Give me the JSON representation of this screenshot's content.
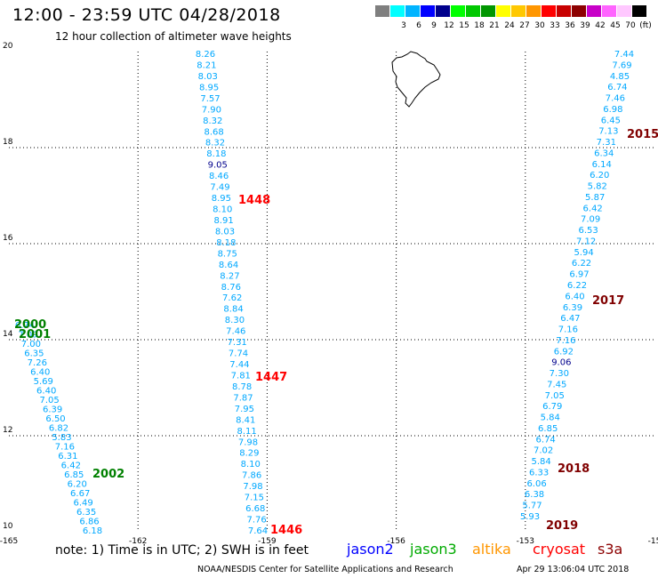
{
  "header": {
    "title": "12:00 - 23:59 UTC 04/28/2018",
    "subtitle": "12 hour collection of altimeter wave heights"
  },
  "color_scale": {
    "bins": [
      {
        "color": "#7f7f7f",
        "label": ""
      },
      {
        "color": "#00ffff",
        "label": "3"
      },
      {
        "color": "#00b4ff",
        "label": "6"
      },
      {
        "color": "#0000ff",
        "label": "9"
      },
      {
        "color": "#00008c",
        "label": "12"
      },
      {
        "color": "#00ff00",
        "label": "15"
      },
      {
        "color": "#00c800",
        "label": "18"
      },
      {
        "color": "#009600",
        "label": "21"
      },
      {
        "color": "#ffff00",
        "label": "24"
      },
      {
        "color": "#ffc800",
        "label": "27"
      },
      {
        "color": "#ff9600",
        "label": "30"
      },
      {
        "color": "#ff0000",
        "label": "33"
      },
      {
        "color": "#c80000",
        "label": "36"
      },
      {
        "color": "#8c0000",
        "label": "39"
      },
      {
        "color": "#c800c8",
        "label": "42"
      },
      {
        "color": "#ff64ff",
        "label": "45"
      },
      {
        "color": "#ffc8ff",
        "label": "70"
      },
      {
        "color": "#000000",
        "label": "(ft)"
      }
    ]
  },
  "map": {
    "lon_ticks": [
      "-165",
      "-162",
      "-159",
      "-156",
      "-153",
      "-15"
    ],
    "lat_ticks": [
      "20",
      "18",
      "16",
      "14",
      "12",
      "10"
    ]
  },
  "tracks": [
    {
      "name": "track-1446-1448",
      "color": "#00a8ff",
      "lon_start": -159.6,
      "lon_end": -159.0,
      "values": [
        "8.26",
        "8.21",
        "8.03",
        "8.95",
        "7.57",
        "7.90",
        "8.32",
        "8.68",
        "8.32",
        "8.18",
        "9.05",
        "8.46",
        "7.49",
        "8.95",
        "8.10",
        "8.91",
        "8.03",
        "8.18",
        "8.75",
        "8.64",
        "8.27",
        "8.76",
        "7.62",
        "8.84",
        "8.30",
        "7.46",
        "7.31",
        "7.74",
        "7.44",
        "7.81",
        "8.78",
        "7.87",
        "7.95",
        "8.41",
        "8.11",
        "7.98",
        "8.29",
        "8.10",
        "7.86",
        "7.98",
        "7.15",
        "6.68",
        "7.76",
        "7.64"
      ],
      "dark_index": [
        10
      ]
    },
    {
      "name": "track-2015-2019",
      "color": "#00a8ff",
      "lon_start": -151.6,
      "lon_end": -153.0,
      "values": [
        "7.44",
        "7.69",
        "4.85",
        "6.74",
        "7.46",
        "6.98",
        "6.45",
        "7.13",
        "7.31",
        "6.34",
        "6.14",
        "6.20",
        "5.82",
        "5.87",
        "6.42",
        "7.09",
        "6.53",
        "7.12",
        "5.94",
        "6.22",
        "6.97",
        "6.22",
        "6.40",
        "6.39",
        "6.47",
        "7.16",
        "7.16",
        "6.92",
        "9.06",
        "7.30",
        "7.45",
        "7.05",
        "6.79",
        "5.84",
        "6.85",
        "6.74",
        "7.02",
        "5.84",
        "6.33",
        "6.06",
        "6.38",
        "5.77",
        "5.93"
      ],
      "dark_index": [
        28
      ]
    },
    {
      "name": "track-2000-2002",
      "color": "#00a8ff",
      "lon_start": -164.7,
      "lon_end": -162.7,
      "values": [
        "6.74",
        "7.09",
        "7.00",
        "6.35",
        "7.26",
        "6.40",
        "5.69",
        "6.40",
        "7.05",
        "6.39",
        "6.50",
        "6.82",
        "5.83",
        "7.16",
        "6.31",
        "6.42",
        "6.85",
        "6.20",
        "6.67",
        "6.49",
        "6.35",
        "6.86",
        "6.18"
      ],
      "dark_index": []
    }
  ],
  "pass_labels": [
    {
      "text": "1448",
      "color": "#ff0000"
    },
    {
      "text": "1447",
      "color": "#ff0000"
    },
    {
      "text": "1446",
      "color": "#ff0000"
    },
    {
      "text": "2015",
      "color": "#800000"
    },
    {
      "text": "2017",
      "color": "#800000"
    },
    {
      "text": "2018",
      "color": "#800000"
    },
    {
      "text": "2019",
      "color": "#800000"
    },
    {
      "text": "2000",
      "color": "#008000"
    },
    {
      "text": "2001",
      "color": "#008000"
    },
    {
      "text": "2002",
      "color": "#008000"
    }
  ],
  "note": "note: 1) Time is in UTC; 2) SWH is in feet",
  "satellites": [
    {
      "name": "jason2",
      "color": "#0000ff"
    },
    {
      "name": "jason3",
      "color": "#00aa00"
    },
    {
      "name": "altika",
      "color": "#ff9600"
    },
    {
      "name": "cryosat",
      "color": "#ff0000"
    },
    {
      "name": "s3a",
      "color": "#8c0000"
    }
  ],
  "footer": "NOAA/NESDIS Center for Satellite Applications and Research",
  "timestamp": "Apr 29 13:06:04 UTC 2018"
}
